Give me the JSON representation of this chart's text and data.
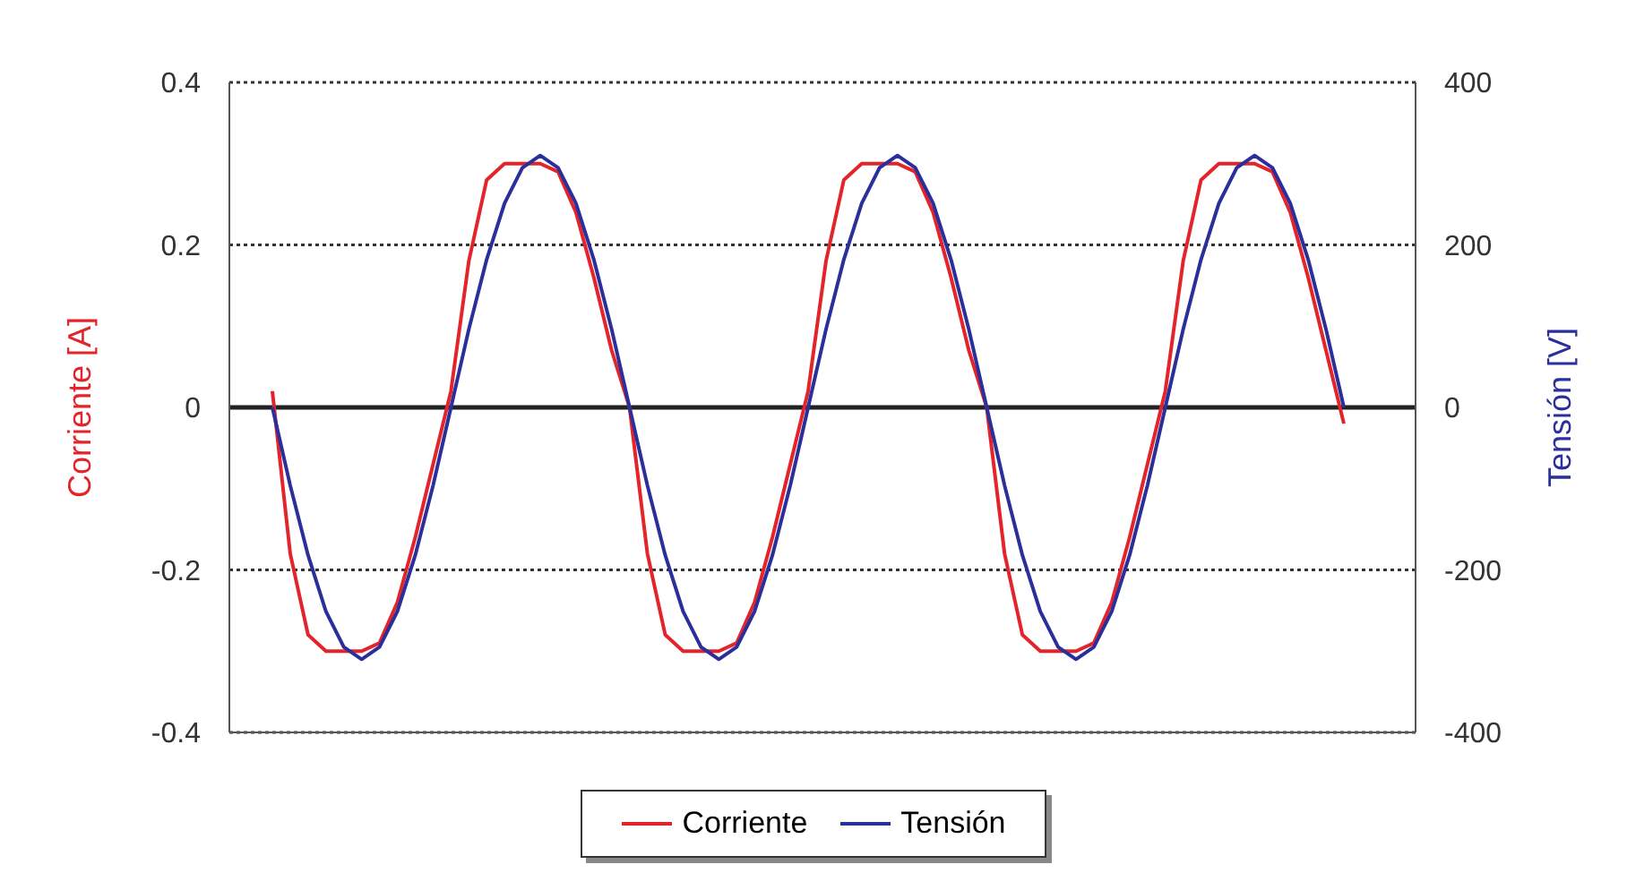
{
  "chart_data": {
    "type": "line",
    "ylabel": "Corriente [A]",
    "y2label": "Tensión [V]",
    "categories": [
      null,
      null,
      null,
      null,
      null,
      null,
      null,
      null,
      null,
      null,
      null,
      null,
      null,
      null,
      null,
      null,
      null,
      null,
      null,
      null,
      null,
      null,
      null,
      null,
      null,
      null,
      null,
      null,
      null,
      null,
      null,
      null,
      null,
      null,
      null,
      null,
      null,
      null,
      null,
      null,
      null,
      null,
      null,
      null,
      null,
      null,
      null,
      null,
      null,
      null,
      null,
      null,
      null,
      null,
      null,
      null,
      null,
      null,
      null,
      null,
      null
    ],
    "series": [
      {
        "name": "Corriente",
        "color": "#e3242b",
        "values": [
          0.02,
          -0.18,
          -0.28,
          -0.3,
          -0.3,
          -0.3,
          -0.29,
          -0.24,
          -0.16,
          -0.07,
          0.02,
          0.18,
          0.28,
          0.3,
          0.3,
          0.3,
          0.29,
          0.24,
          0.16,
          0.07,
          0.0,
          -0.18,
          -0.28,
          -0.3,
          -0.3,
          -0.3,
          -0.29,
          -0.24,
          -0.16,
          -0.07,
          0.02,
          0.18,
          0.28,
          0.3,
          0.3,
          0.3,
          0.29,
          0.24,
          0.16,
          0.07,
          0.0,
          -0.18,
          -0.28,
          -0.3,
          -0.3,
          -0.3,
          -0.29,
          -0.24,
          -0.16,
          -0.07,
          0.02,
          0.18,
          0.28,
          0.3,
          0.3,
          0.3,
          0.29,
          0.24,
          0.16,
          0.07,
          -0.02
        ]
      },
      {
        "name": "Tensión",
        "color": "#2a2f9a",
        "axis": "y2",
        "values": [
          0,
          -96,
          -182,
          -251,
          -295,
          -310,
          -295,
          -251,
          -182,
          -96,
          0,
          96,
          182,
          251,
          295,
          310,
          295,
          251,
          182,
          96,
          0,
          -96,
          -182,
          -251,
          -295,
          -310,
          -295,
          -251,
          -182,
          -96,
          0,
          96,
          182,
          251,
          295,
          310,
          295,
          251,
          182,
          96,
          0,
          -96,
          -182,
          -251,
          -295,
          -310,
          -295,
          -251,
          -182,
          -96,
          0,
          96,
          182,
          251,
          295,
          310,
          295,
          251,
          182,
          96,
          0
        ]
      }
    ],
    "ylim": [
      -0.4,
      0.4
    ],
    "yticks": [
      -0.4,
      -0.2,
      0,
      0.2,
      0.4
    ],
    "y2lim": [
      -400,
      400
    ],
    "y2ticks": [
      -400,
      -200,
      0,
      200,
      400
    ],
    "ref_lines": [
      {
        "axis": "y",
        "value": 0,
        "color": "#222222"
      }
    ],
    "grid": "y",
    "line_style": "solid",
    "legend": "bottom",
    "tick_labels": "y"
  }
}
